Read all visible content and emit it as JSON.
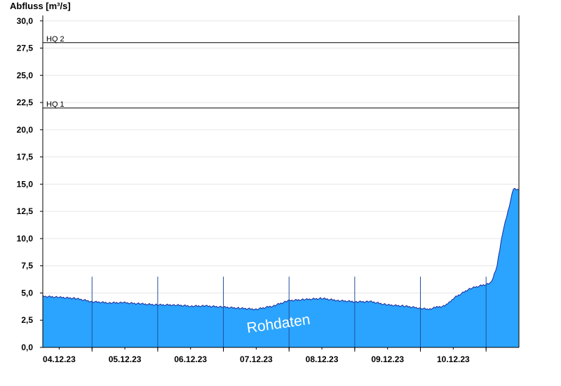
{
  "chart_data": {
    "type": "area",
    "ylabel": "Abfluss [m³/s]",
    "ylim": [
      0,
      30.5
    ],
    "yticks": [
      "0,0",
      "2,5",
      "5,0",
      "7,5",
      "10,0",
      "12,5",
      "15,0",
      "17,5",
      "20,0",
      "22,5",
      "25,0",
      "27,5",
      "30,0"
    ],
    "ytick_values": [
      0,
      2.5,
      5,
      7.5,
      10,
      12.5,
      15,
      17.5,
      20,
      22.5,
      25,
      27.5,
      30
    ],
    "xlim": [
      "2023-12-03T06:00",
      "2023-12-10T12:00"
    ],
    "x_tick_labels": [
      "04.12.23",
      "05.12.23",
      "06.12.23",
      "07.12.23",
      "08.12.23",
      "09.12.23",
      "10.12.23"
    ],
    "day_boundaries": [
      "2023-12-04T00:00",
      "2023-12-05T00:00",
      "2023-12-06T00:00",
      "2023-12-07T00:00",
      "2023-12-08T00:00",
      "2023-12-09T00:00",
      "2023-12-10T00:00"
    ],
    "grid": true,
    "reference_lines": [
      {
        "label": "HQ 1",
        "value": 22.0
      },
      {
        "label": "HQ 2",
        "value": 28.0
      }
    ],
    "watermark": "Rohdaten",
    "fill_color": "#2ba4ff",
    "line_color": "#1a2a9a",
    "series": [
      {
        "x": [
          "2023-12-03T06:00",
          "2023-12-03T12:00",
          "2023-12-03T18:00",
          "2023-12-04T00:00",
          "2023-12-04T06:00",
          "2023-12-04T12:00",
          "2023-12-04T18:00",
          "2023-12-05T00:00",
          "2023-12-05T06:00",
          "2023-12-05T12:00",
          "2023-12-05T18:00",
          "2023-12-06T00:00",
          "2023-12-06T06:00",
          "2023-12-06T12:00",
          "2023-12-06T18:00",
          "2023-12-07T00:00",
          "2023-12-07T06:00",
          "2023-12-07T12:00",
          "2023-12-07T18:00",
          "2023-12-08T00:00",
          "2023-12-08T06:00",
          "2023-12-08T12:00",
          "2023-12-08T18:00",
          "2023-12-09T00:00",
          "2023-12-09T03:00",
          "2023-12-09T06:00",
          "2023-12-09T09:00",
          "2023-12-09T12:00",
          "2023-12-09T18:00",
          "2023-12-10T00:00",
          "2023-12-10T02:00",
          "2023-12-10T04:00",
          "2023-12-10T06:00",
          "2023-12-10T08:00",
          "2023-12-10T10:00",
          "2023-12-10T12:00"
        ],
        "values": [
          4.7,
          4.6,
          4.5,
          4.2,
          4.1,
          4.1,
          4.0,
          3.9,
          3.9,
          3.8,
          3.8,
          3.7,
          3.6,
          3.5,
          3.8,
          4.3,
          4.4,
          4.5,
          4.3,
          4.2,
          4.2,
          3.9,
          3.8,
          3.6,
          3.5,
          3.7,
          3.8,
          4.5,
          5.4,
          5.8,
          6.0,
          7.5,
          10.5,
          12.5,
          14.6,
          14.5
        ]
      }
    ]
  }
}
